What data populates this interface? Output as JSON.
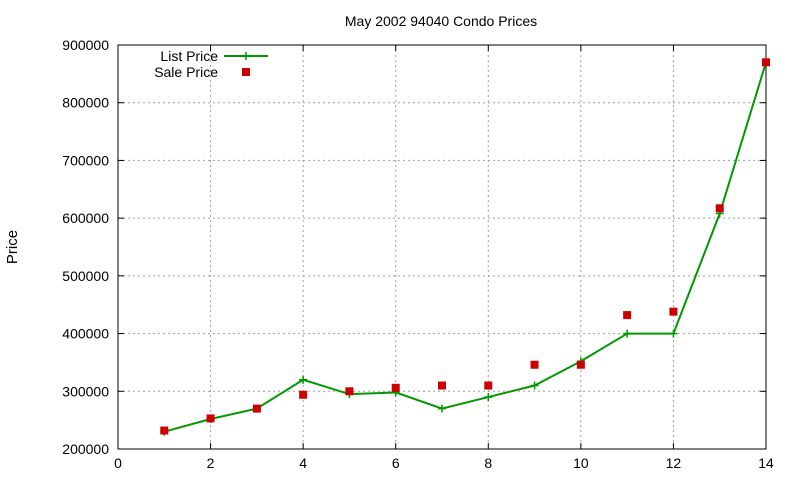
{
  "chart_data": {
    "type": "line",
    "title": "May 2002 94040 Condo Prices",
    "xlabel": "",
    "ylabel": "Price",
    "xlim": [
      0,
      14
    ],
    "ylim": [
      200000,
      900000
    ],
    "xticks": [
      0,
      2,
      4,
      6,
      8,
      10,
      12,
      14
    ],
    "yticks": [
      200000,
      300000,
      400000,
      500000,
      600000,
      700000,
      800000,
      900000
    ],
    "grid": true,
    "legend_position": "top-left",
    "series": [
      {
        "name": "List Price",
        "style": "line-plus",
        "color": "#009900",
        "x": [
          1,
          2,
          3,
          4,
          5,
          6,
          7,
          8,
          9,
          10,
          11,
          12,
          13,
          14
        ],
        "y": [
          230000,
          252000,
          270000,
          320000,
          295000,
          298000,
          270000,
          290000,
          310000,
          352000,
          400000,
          400000,
          608000,
          870000
        ]
      },
      {
        "name": "Sale Price",
        "style": "points-square",
        "color": "#cc0000",
        "x": [
          1,
          2,
          3,
          4,
          5,
          6,
          7,
          8,
          9,
          10,
          11,
          12,
          13,
          14
        ],
        "y": [
          232000,
          253000,
          270000,
          294000,
          300000,
          306000,
          310000,
          310000,
          346000,
          346000,
          432000,
          438000,
          617000,
          870000
        ]
      }
    ]
  }
}
